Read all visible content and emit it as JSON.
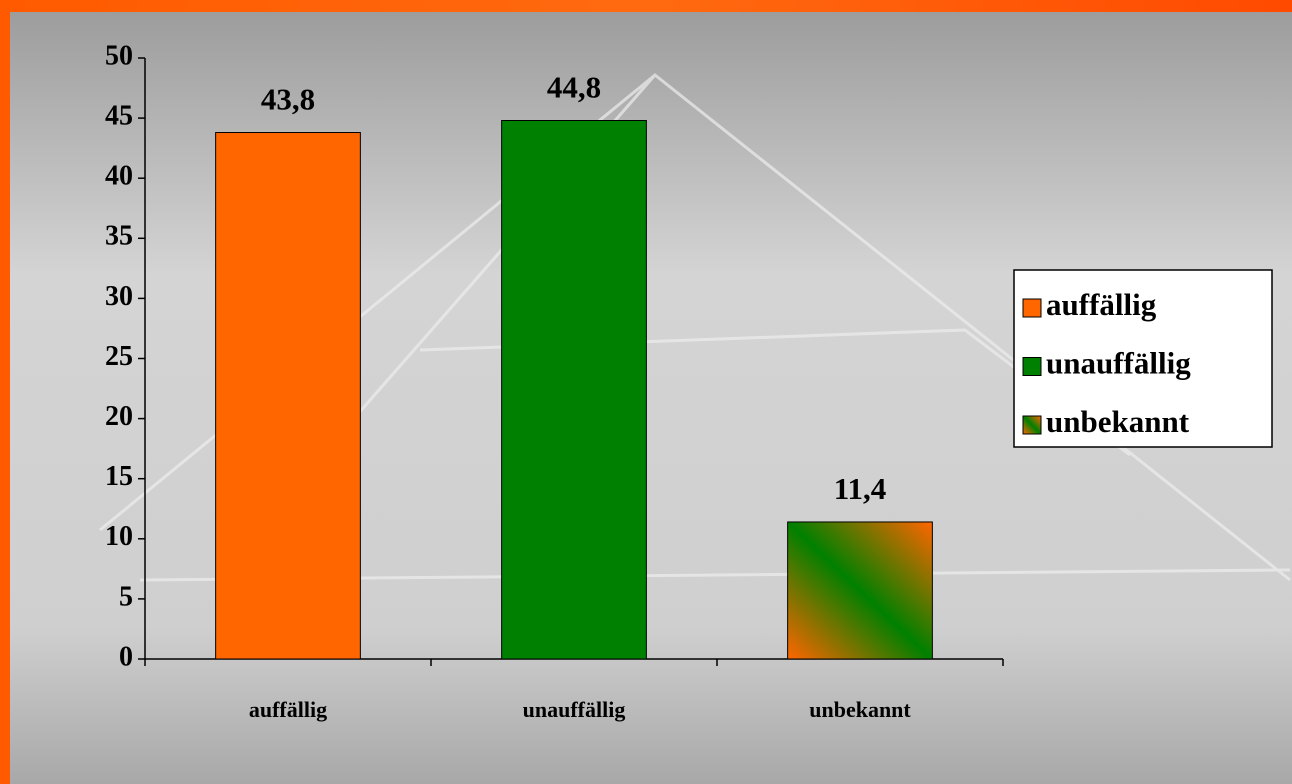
{
  "chart_data": {
    "type": "bar",
    "categories": [
      "auffällig",
      "unauffällig",
      "unbekannt"
    ],
    "values": [
      43.8,
      44.8,
      11.4
    ],
    "value_labels": [
      "43,8",
      "44,8",
      "11,4"
    ],
    "colors": [
      "#ff6600",
      "#008000",
      [
        "#ff6600",
        "#008000",
        "#ff6600"
      ]
    ],
    "ylim": [
      0,
      50
    ],
    "yticks": [
      0,
      5,
      10,
      15,
      20,
      25,
      30,
      35,
      40,
      45,
      50
    ],
    "legend": "right"
  }
}
